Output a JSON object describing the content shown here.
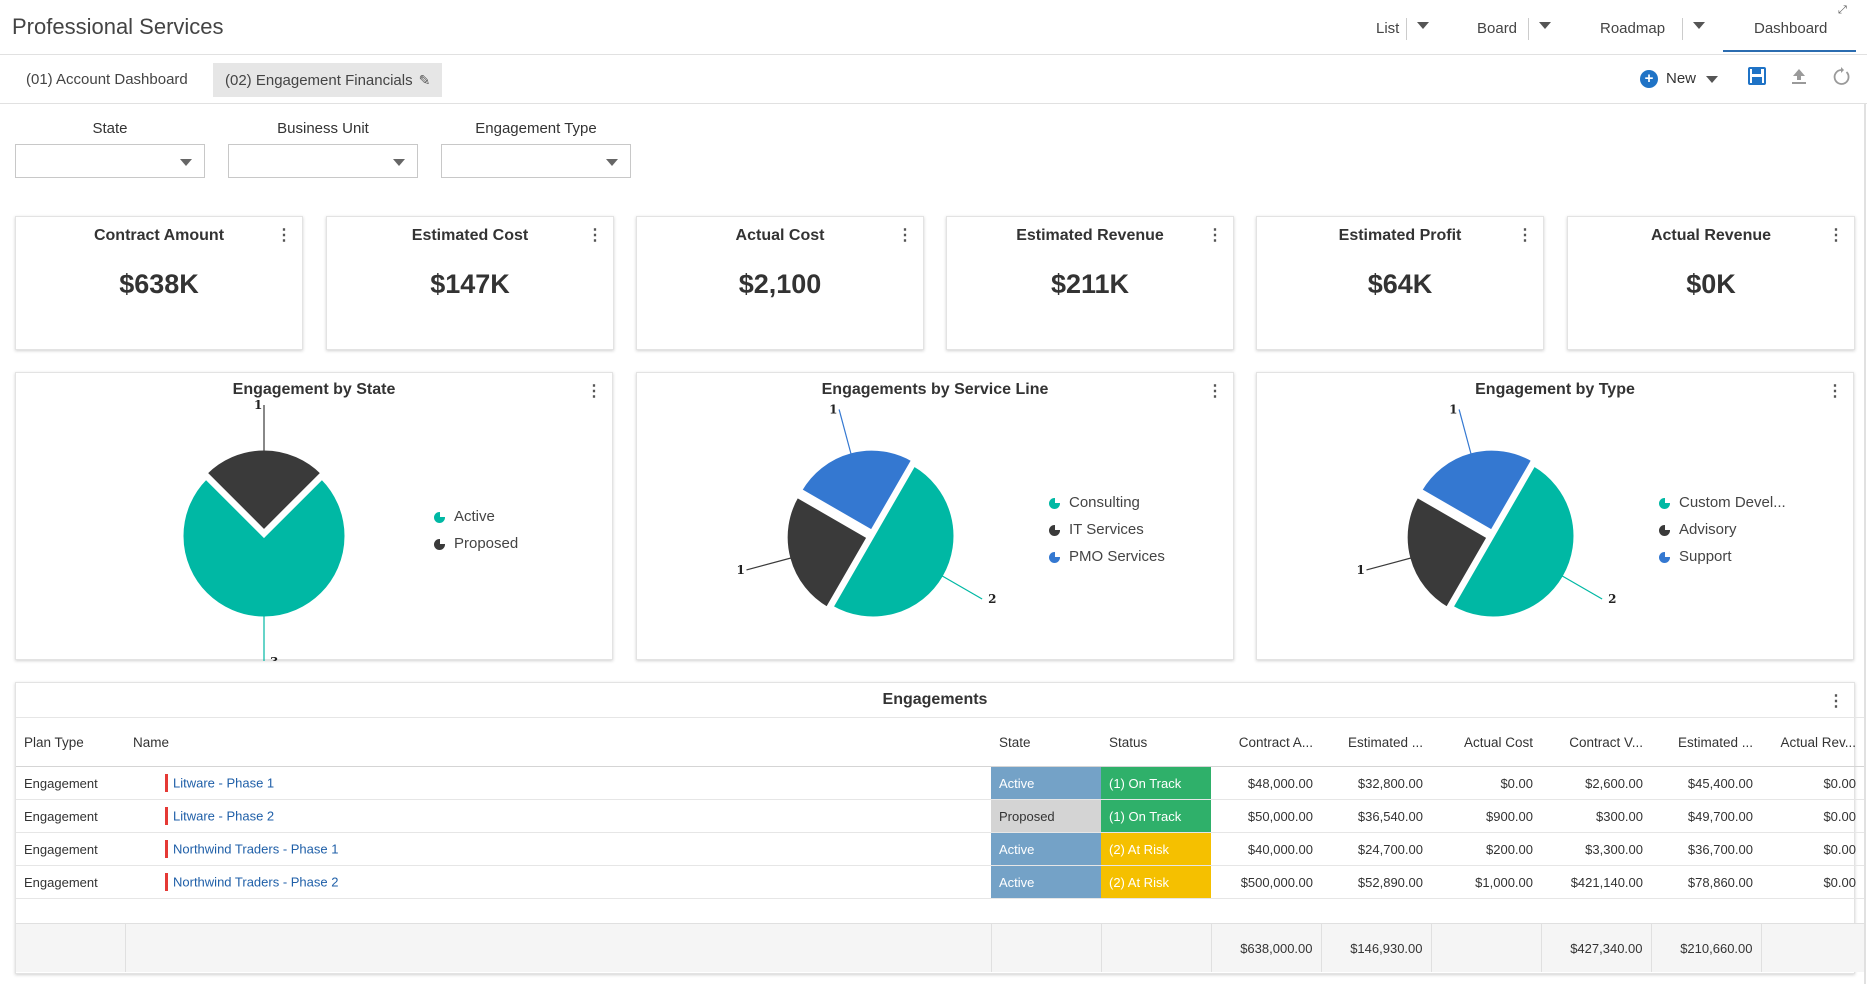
{
  "app": {
    "title": "Professional Services"
  },
  "views": {
    "list": "List",
    "board": "Board",
    "roadmap": "Roadmap",
    "dashboard": "Dashboard"
  },
  "tabs": [
    {
      "label": "(01) Account Dashboard"
    },
    {
      "label": "(02) Engagement Financials"
    }
  ],
  "toolbar": {
    "new_label": "New"
  },
  "filters": {
    "state": "State",
    "business_unit": "Business Unit",
    "engagement_type": "Engagement Type"
  },
  "kpis": [
    {
      "title": "Contract Amount",
      "value": "$638K"
    },
    {
      "title": "Estimated Cost",
      "value": "$147K"
    },
    {
      "title": "Actual Cost",
      "value": "$2,100"
    },
    {
      "title": "Estimated Revenue",
      "value": "$211K"
    },
    {
      "title": "Estimated Profit",
      "value": "$64K"
    },
    {
      "title": "Actual Revenue",
      "value": "$0K"
    }
  ],
  "chart_data": [
    {
      "type": "pie",
      "title": "Engagement by State",
      "categories": [
        "Active",
        "Proposed"
      ],
      "values": [
        3,
        1
      ],
      "colors": [
        "#00b8a4",
        "#3a3a3a"
      ],
      "legend": "right"
    },
    {
      "type": "pie",
      "title": "Engagements by Service Line",
      "categories": [
        "Consulting",
        "IT Services",
        "PMO Services"
      ],
      "values": [
        2,
        1,
        1
      ],
      "colors": [
        "#00b8a4",
        "#3a3a3a",
        "#3478d1"
      ],
      "legend": "right"
    },
    {
      "type": "pie",
      "title": "Engagement by Type",
      "categories": [
        "Custom Devel...",
        "Advisory",
        "Support"
      ],
      "values": [
        2,
        1,
        1
      ],
      "colors": [
        "#00b8a4",
        "#3a3a3a",
        "#3478d1"
      ],
      "legend": "right"
    }
  ],
  "table": {
    "title": "Engagements",
    "columns": [
      "Plan Type",
      "Name",
      "State",
      "Status",
      "Contract A...",
      "Estimated ...",
      "Actual Cost",
      "Contract V...",
      "Estimated ...",
      "Actual Rev..."
    ],
    "rows": [
      {
        "plan_type": "Engagement",
        "name": "Litware - Phase 1",
        "state": "Active",
        "status": "(1) On Track",
        "contract_amount": "$48,000.00",
        "estimated_cost": "$32,800.00",
        "actual_cost": "$0.00",
        "contract_value": "$2,600.00",
        "estimated_revenue": "$45,400.00",
        "actual_revenue": "$0.00"
      },
      {
        "plan_type": "Engagement",
        "name": "Litware - Phase 2",
        "state": "Proposed",
        "status": "(1) On Track",
        "contract_amount": "$50,000.00",
        "estimated_cost": "$36,540.00",
        "actual_cost": "$900.00",
        "contract_value": "$300.00",
        "estimated_revenue": "$49,700.00",
        "actual_revenue": "$0.00"
      },
      {
        "plan_type": "Engagement",
        "name": "Northwind Traders - Phase 1",
        "state": "Active",
        "status": "(2) At Risk",
        "contract_amount": "$40,000.00",
        "estimated_cost": "$24,700.00",
        "actual_cost": "$200.00",
        "contract_value": "$3,300.00",
        "estimated_revenue": "$36,700.00",
        "actual_revenue": "$0.00"
      },
      {
        "plan_type": "Engagement",
        "name": "Northwind Traders - Phase 2",
        "state": "Active",
        "status": "(2) At Risk",
        "contract_amount": "$500,000.00",
        "estimated_cost": "$52,890.00",
        "actual_cost": "$1,000.00",
        "contract_value": "$421,140.00",
        "estimated_revenue": "$78,860.00",
        "actual_revenue": "$0.00"
      }
    ],
    "totals": {
      "contract_amount": "$638,000.00",
      "estimated_cost": "$146,930.00",
      "contract_value": "$427,340.00",
      "estimated_revenue": "$210,660.00"
    }
  }
}
